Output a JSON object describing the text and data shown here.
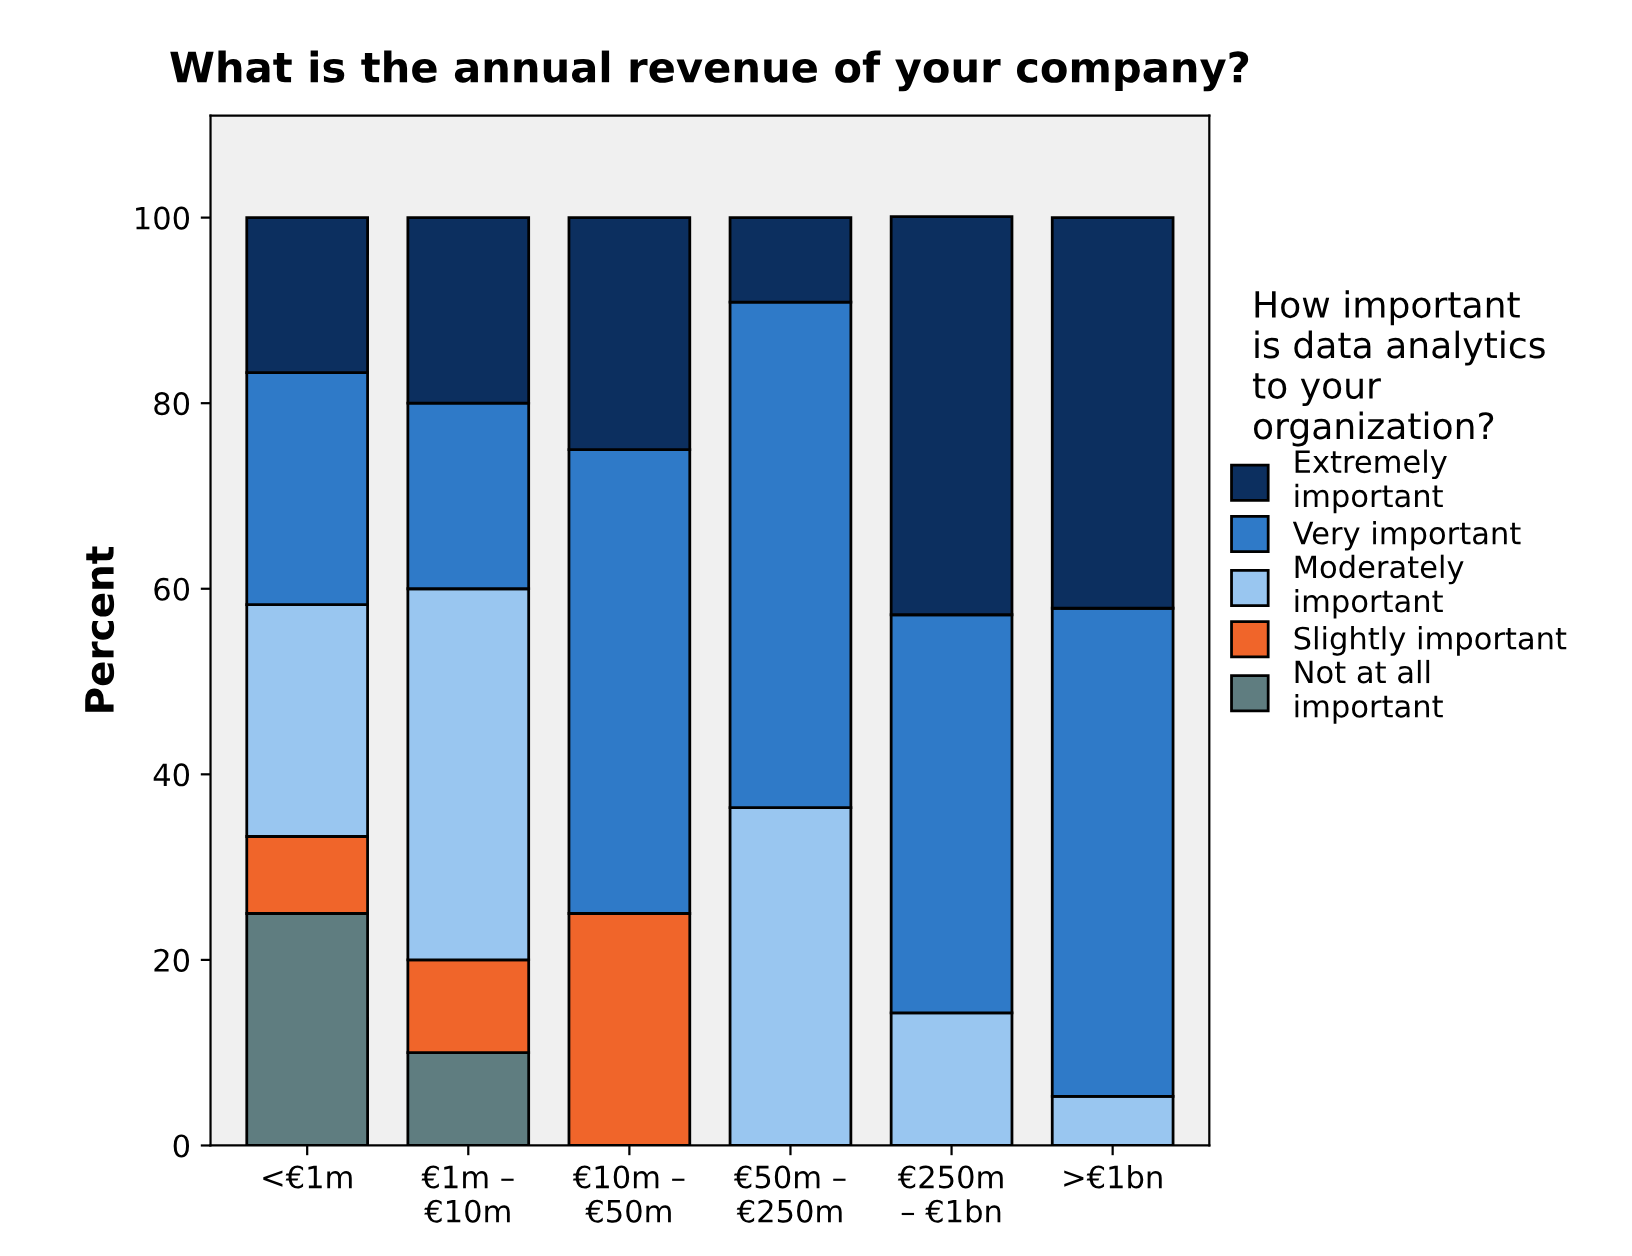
{
  "chart_data": {
    "type": "bar",
    "stacked": true,
    "title": "What is the annual revenue of your company?",
    "ylabel": "Percent",
    "legend_title": "How important\nis data analytics\nto your\norganization?",
    "legend": "right",
    "categories": [
      "<€1m",
      "€1m –\n€10m",
      "€10m –\n€50m",
      "€50m –\n€250m",
      "€250m\n– €1bn",
      ">€1bn"
    ],
    "ylim": [
      0,
      111
    ],
    "yticks": [
      0,
      20,
      40,
      60,
      80,
      100
    ],
    "grid": false,
    "series": [
      {
        "name": "Not at all\nimportant",
        "color": "#5f7d80",
        "values": [
          25,
          10,
          0,
          0,
          0,
          0
        ]
      },
      {
        "name": "Slightly important",
        "color": "#f0652a",
        "values": [
          8.3,
          10,
          25,
          0,
          0,
          0
        ]
      },
      {
        "name": "Moderately\nimportant",
        "color": "#99c6f0",
        "values": [
          25,
          40,
          0,
          36.4,
          14.3,
          5.3
        ]
      },
      {
        "name": "Very important",
        "color": "#2f7ac8",
        "values": [
          25,
          20,
          50,
          54.5,
          42.9,
          52.6
        ]
      },
      {
        "name": "Extremely\nimportant",
        "color": "#0c2f5f",
        "values": [
          16.7,
          20,
          25,
          9.1,
          42.9,
          42.1
        ]
      }
    ]
  }
}
